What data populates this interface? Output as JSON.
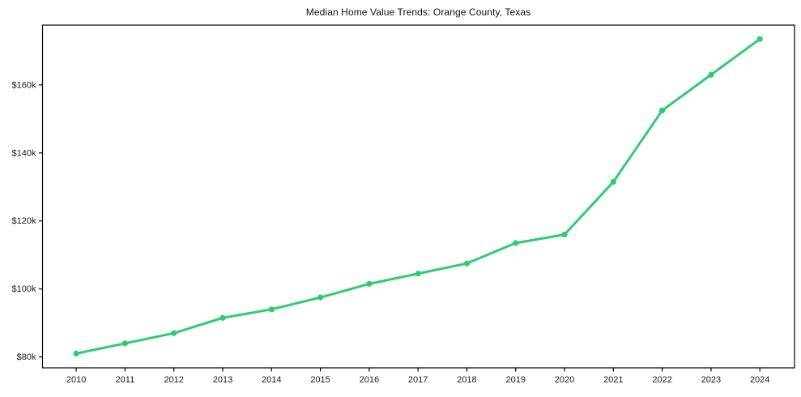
{
  "title": "Median Home Value Trends: Orange County, Texas",
  "chart_data": {
    "type": "line",
    "title": "Median Home Value Trends: Orange County, Texas",
    "xlabel": "",
    "ylabel": "",
    "x": [
      2010,
      2011,
      2012,
      2013,
      2014,
      2015,
      2016,
      2017,
      2018,
      2019,
      2020,
      2021,
      2022,
      2023,
      2024
    ],
    "series": [
      {
        "name": "Median Home Value",
        "values": [
          81000,
          84000,
          87000,
          91500,
          94000,
          97500,
          101500,
          104500,
          107500,
          113500,
          116000,
          131500,
          152500,
          163000,
          173500
        ]
      }
    ],
    "yticks": [
      80000,
      100000,
      120000,
      140000,
      160000
    ],
    "ytick_labels": [
      "$80k",
      "$100k",
      "$120k",
      "$140k",
      "$160k"
    ],
    "xtick_labels": [
      "2010",
      "2011",
      "2012",
      "2013",
      "2014",
      "2015",
      "2016",
      "2017",
      "2018",
      "2019",
      "2020",
      "2021",
      "2022",
      "2023",
      "2024"
    ],
    "xlim": [
      2009.31,
      2024.71
    ],
    "ylim": [
      76800,
      177600
    ],
    "grid": false,
    "legend_position": "none",
    "line_color": "#2ecc71",
    "marker": "circle",
    "spine_color": "#000000",
    "tick_text_color": "#1a1a1a",
    "background_color": "#ffffff"
  }
}
